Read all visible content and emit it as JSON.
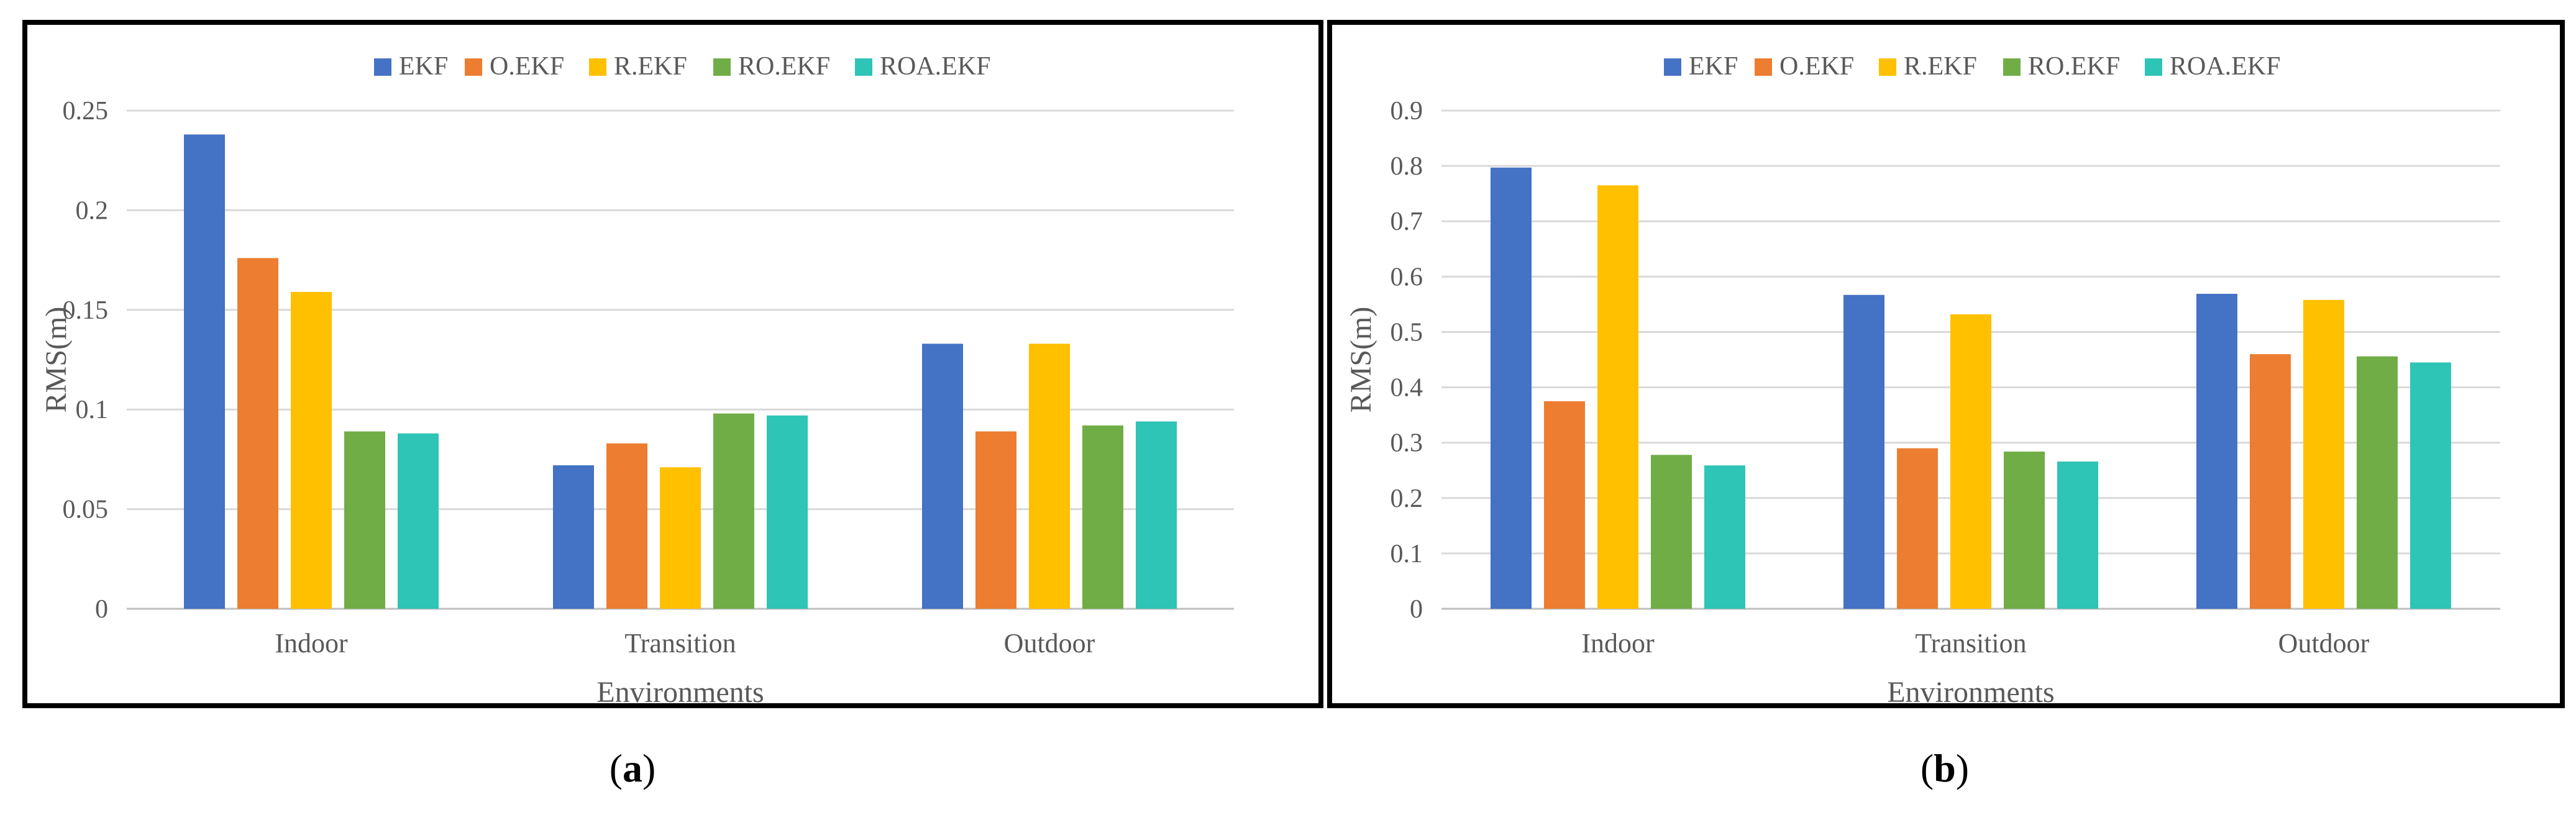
{
  "chart_data": [
    {
      "id": "a",
      "type": "bar",
      "categories": [
        "Indoor",
        "Transition",
        "Outdoor"
      ],
      "series": [
        {
          "name": "EKF",
          "color": "#4472C4",
          "values": [
            0.238,
            0.072,
            0.133
          ]
        },
        {
          "name": "O.EKF",
          "color": "#ED7D31",
          "values": [
            0.176,
            0.083,
            0.089
          ]
        },
        {
          "name": "R.EKF",
          "color": "#FFC000",
          "values": [
            0.159,
            0.071,
            0.133
          ]
        },
        {
          "name": "RO.EKF",
          "color": "#70AD47",
          "values": [
            0.089,
            0.098,
            0.092
          ]
        },
        {
          "name": "ROA.EKF",
          "color": "#2EC4B6",
          "values": [
            0.088,
            0.097,
            0.094
          ]
        }
      ],
      "xlabel": "Environments",
      "ylabel": "RMS(m)",
      "ylim": [
        0,
        0.25
      ],
      "yticks": [
        "0",
        "0.05",
        "0.1",
        "0.15",
        "0.2",
        "0.25"
      ],
      "ytick_values": [
        0,
        0.05,
        0.1,
        0.15,
        0.2,
        0.25
      ],
      "legend": "top",
      "grid": true
    },
    {
      "id": "b",
      "type": "bar",
      "categories": [
        "Indoor",
        "Transition",
        "Outdoor"
      ],
      "series": [
        {
          "name": "EKF",
          "color": "#4472C4",
          "values": [
            0.797,
            0.567,
            0.569
          ]
        },
        {
          "name": "O.EKF",
          "color": "#ED7D31",
          "values": [
            0.375,
            0.29,
            0.46
          ]
        },
        {
          "name": "R.EKF",
          "color": "#FFC000",
          "values": [
            0.765,
            0.532,
            0.558
          ]
        },
        {
          "name": "RO.EKF",
          "color": "#70AD47",
          "values": [
            0.278,
            0.284,
            0.456
          ]
        },
        {
          "name": "ROA.EKF",
          "color": "#2EC4B6",
          "values": [
            0.259,
            0.266,
            0.445
          ]
        }
      ],
      "xlabel": "Environments",
      "ylabel": "RMS(m)",
      "ylim": [
        0,
        0.9
      ],
      "yticks": [
        "0",
        "0.1",
        "0.2",
        "0.3",
        "0.4",
        "0.5",
        "0.6",
        "0.7",
        "0.8",
        "0.9"
      ],
      "ytick_values": [
        0,
        0.1,
        0.2,
        0.3,
        0.4,
        0.5,
        0.6,
        0.7,
        0.8,
        0.9
      ],
      "legend": "top",
      "grid": true
    }
  ],
  "captions": {
    "a": {
      "open": "(",
      "letter": "a",
      "close": ")"
    },
    "b": {
      "open": "(",
      "letter": "b",
      "close": ")"
    }
  }
}
